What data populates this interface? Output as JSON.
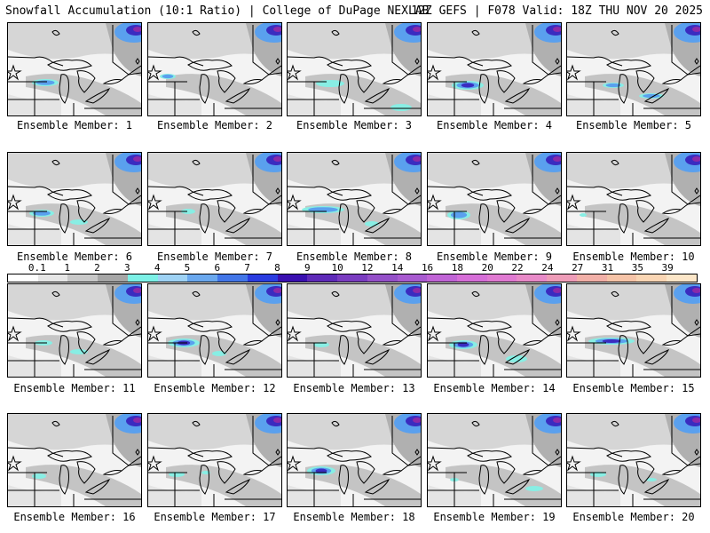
{
  "header": {
    "left": "Snowfall Accumulation (10:1 Ratio) | College of DuPage NEXLAB",
    "right": "12Z GEFS | F078 Valid: 18Z THU NOV 20 2025"
  },
  "colorbar": {
    "ticks": [
      "0.1",
      "1",
      "2",
      "3",
      "4",
      "5",
      "6",
      "7",
      "8",
      "9",
      "10",
      "12",
      "14",
      "16",
      "18",
      "20",
      "22",
      "24",
      "27",
      "31",
      "35",
      "39"
    ],
    "colors": [
      "#ffffff",
      "#e6e6e6",
      "#c8c8c8",
      "#a6a6a6",
      "#7cf0e6",
      "#9ed2f4",
      "#6aa8ee",
      "#4276e8",
      "#2a3ce0",
      "#3a10b0",
      "#5e2ab8",
      "#7a3cc0",
      "#9450c8",
      "#a85ad0",
      "#c064d6",
      "#d66ed8",
      "#e07ad2",
      "#e88ac8",
      "#ee9cb8",
      "#f2b0a8",
      "#f6c4a8",
      "#fad6b4",
      "#fce6c8"
    ]
  },
  "members": [
    {
      "label": "Ensemble Member: 1",
      "snow": [
        {
          "x": 42,
          "y": 67,
          "rx": 15,
          "ry": 4,
          "level": 2
        }
      ]
    },
    {
      "label": "Ensemble Member: 2",
      "snow": [
        {
          "x": 22,
          "y": 60,
          "rx": 9,
          "ry": 3,
          "level": 2
        }
      ]
    },
    {
      "label": "Ensemble Member: 3",
      "snow": [
        {
          "x": 48,
          "y": 68,
          "rx": 16,
          "ry": 4,
          "level": 1
        },
        {
          "x": 128,
          "y": 95,
          "rx": 12,
          "ry": 4,
          "level": 1
        }
      ]
    },
    {
      "label": "Ensemble Member: 4",
      "snow": [
        {
          "x": 45,
          "y": 70,
          "rx": 18,
          "ry": 5,
          "level": 3
        }
      ]
    },
    {
      "label": "Ensemble Member: 5",
      "snow": [
        {
          "x": 52,
          "y": 70,
          "rx": 12,
          "ry": 3,
          "level": 2
        },
        {
          "x": 95,
          "y": 82,
          "rx": 14,
          "ry": 3,
          "level": 2
        }
      ]
    },
    {
      "label": "Ensemble Member: 6",
      "snow": [
        {
          "x": 38,
          "y": 68,
          "rx": 14,
          "ry": 4,
          "level": 2
        },
        {
          "x": 80,
          "y": 78,
          "rx": 10,
          "ry": 3,
          "level": 1
        }
      ]
    },
    {
      "label": "Ensemble Member: 7",
      "snow": [
        {
          "x": 45,
          "y": 66,
          "rx": 8,
          "ry": 3,
          "level": 1
        }
      ]
    },
    {
      "label": "Ensemble Member: 8",
      "snow": [
        {
          "x": 40,
          "y": 64,
          "rx": 24,
          "ry": 4,
          "level": 2
        },
        {
          "x": 95,
          "y": 80,
          "rx": 8,
          "ry": 3,
          "level": 1
        }
      ]
    },
    {
      "label": "Ensemble Member: 9",
      "snow": [
        {
          "x": 35,
          "y": 70,
          "rx": 13,
          "ry": 5,
          "level": 2
        }
      ]
    },
    {
      "label": "Ensemble Member: 10",
      "snow": [
        {
          "x": 18,
          "y": 70,
          "rx": 4,
          "ry": 2,
          "level": 1
        }
      ]
    },
    {
      "label": "Ensemble Member: 11",
      "snow": [
        {
          "x": 40,
          "y": 66,
          "rx": 10,
          "ry": 3,
          "level": 1
        },
        {
          "x": 80,
          "y": 76,
          "rx": 10,
          "ry": 3,
          "level": 1
        }
      ]
    },
    {
      "label": "Ensemble Member: 12",
      "snow": [
        {
          "x": 40,
          "y": 66,
          "rx": 18,
          "ry": 5,
          "level": 3
        },
        {
          "x": 80,
          "y": 78,
          "rx": 8,
          "ry": 3,
          "level": 1
        }
      ]
    },
    {
      "label": "Ensemble Member: 13",
      "snow": [
        {
          "x": 38,
          "y": 68,
          "rx": 9,
          "ry": 3,
          "level": 1
        }
      ]
    },
    {
      "label": "Ensemble Member: 14",
      "snow": [
        {
          "x": 40,
          "y": 68,
          "rx": 16,
          "ry": 5,
          "level": 3
        },
        {
          "x": 100,
          "y": 84,
          "rx": 12,
          "ry": 4,
          "level": 1
        }
      ]
    },
    {
      "label": "Ensemble Member: 15",
      "snow": [
        {
          "x": 50,
          "y": 64,
          "rx": 26,
          "ry": 4,
          "level": 3
        }
      ]
    },
    {
      "label": "Ensemble Member: 16",
      "snow": [
        {
          "x": 35,
          "y": 70,
          "rx": 8,
          "ry": 3,
          "level": 1
        }
      ]
    },
    {
      "label": "Ensemble Member: 17",
      "snow": [
        {
          "x": 32,
          "y": 68,
          "rx": 9,
          "ry": 3,
          "level": 1
        },
        {
          "x": 65,
          "y": 66,
          "rx": 5,
          "ry": 2,
          "level": 1
        }
      ]
    },
    {
      "label": "Ensemble Member: 18",
      "snow": [
        {
          "x": 38,
          "y": 64,
          "rx": 16,
          "ry": 5,
          "level": 3
        }
      ]
    },
    {
      "label": "Ensemble Member: 19",
      "snow": [
        {
          "x": 30,
          "y": 74,
          "rx": 5,
          "ry": 2,
          "level": 1
        },
        {
          "x": 120,
          "y": 84,
          "rx": 10,
          "ry": 3,
          "level": 1
        }
      ]
    },
    {
      "label": "Ensemble Member: 20",
      "snow": [
        {
          "x": 35,
          "y": 68,
          "rx": 9,
          "ry": 3,
          "level": 1
        },
        {
          "x": 95,
          "y": 74,
          "rx": 6,
          "ry": 2,
          "level": 1
        }
      ]
    }
  ]
}
